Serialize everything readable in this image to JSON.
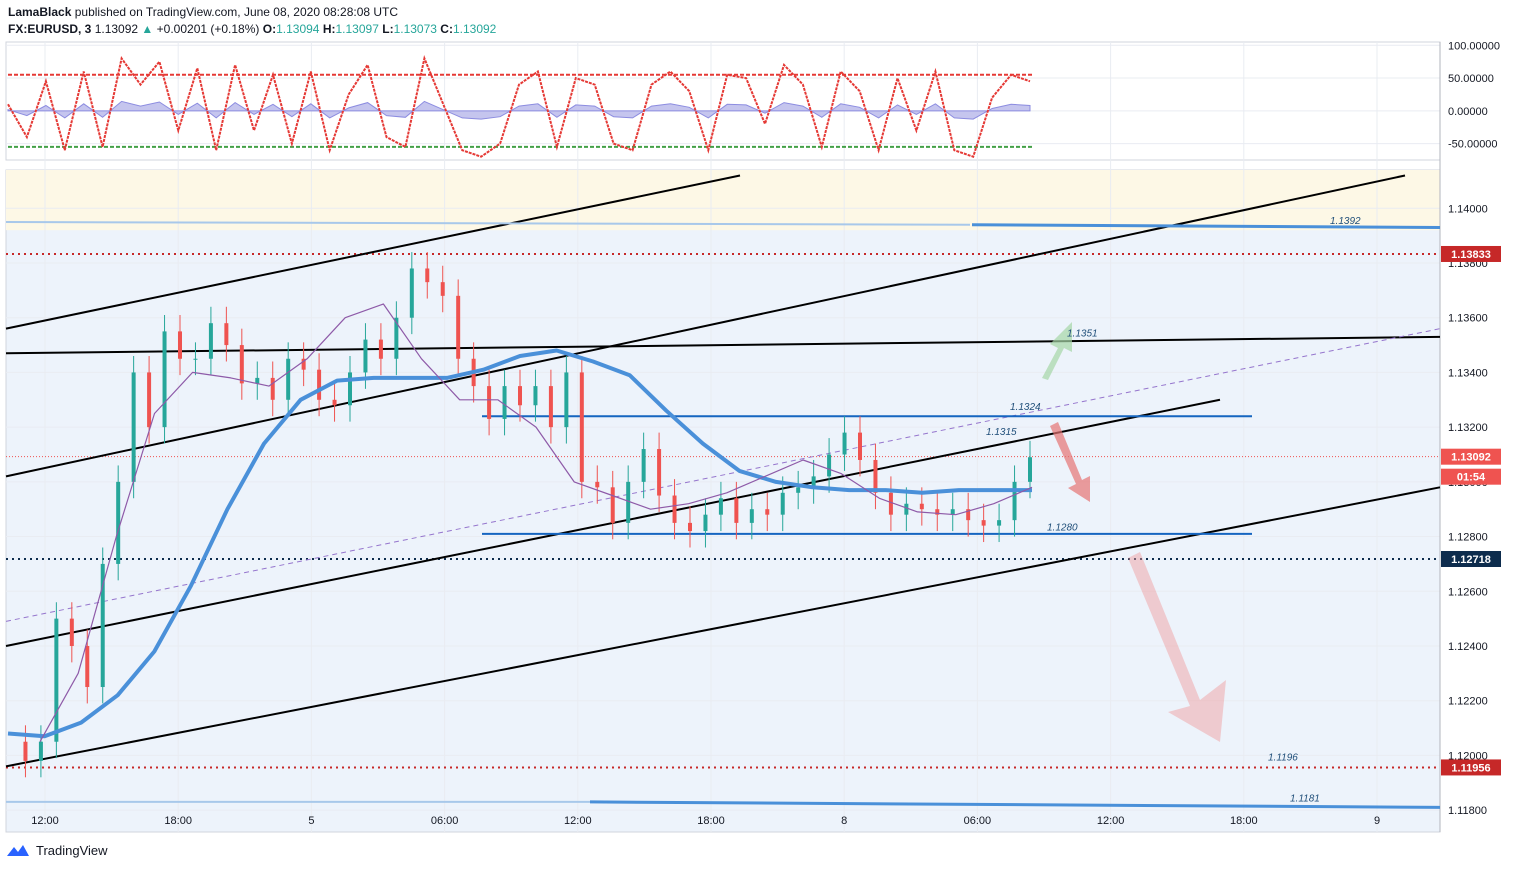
{
  "header": {
    "author": "LamaBlack",
    "published": "published on TradingView.com, June 08, 2020 08:28:08 UTC",
    "symbol": "FX:EURUSD, 3",
    "last": "1.13092",
    "change_arrow": "▲",
    "change": "+0.00201 (+0.18%)",
    "o_label": "O:",
    "o_value": "1.13094",
    "h_label": "H:",
    "h_value": "1.13097",
    "l_label": "L:",
    "l_value": "1.13073",
    "c_label": "C:",
    "c_value": "1.13092"
  },
  "footer": {
    "brand": "TradingView",
    "logo_icon": "tradingview-logo-icon"
  },
  "colors": {
    "grid": "#e9ecf2",
    "panel": "#edf3fb",
    "resistance_band": "#fdf8e6",
    "blue_ma": "#4a90d9",
    "purple_ma": "#8e5aa8",
    "up_candle": "#26a69a",
    "down_candle": "#ef5350",
    "red_level": "#c62828",
    "navy_level": "#0d2c4d",
    "osc_red": "#e53935",
    "osc_green": "#43a047",
    "osc_fill": "#c5c5ee"
  },
  "chart_data": [
    {
      "type": "line",
      "panel": "oscillator",
      "yticks": [
        "100.00000",
        "50.00000",
        "0.00000",
        "-50.00000"
      ],
      "ylim": [
        -75,
        105
      ],
      "levels": [
        55,
        -55
      ],
      "series": [
        {
          "values": [
            10,
            -40,
            45,
            -60,
            60,
            -55,
            80,
            40,
            75,
            -30,
            65,
            -60,
            70,
            -30,
            55,
            -50,
            60,
            -60,
            25,
            70,
            -40,
            -55,
            80,
            10,
            -60,
            -70,
            -50,
            40,
            60,
            -55,
            50,
            40,
            -50,
            -60,
            40,
            60,
            30,
            -60,
            55,
            50,
            -20,
            70,
            40,
            -55,
            60,
            30,
            -60,
            50,
            -30,
            60,
            -60,
            -70,
            20,
            55,
            45
          ]
        }
      ]
    },
    {
      "type": "candlestick",
      "panel": "price",
      "x_labels": [
        "12:00",
        "18:00",
        "5",
        "06:00",
        "12:00",
        "18:00",
        "8",
        "06:00",
        "12:00",
        "18:00",
        "9"
      ],
      "yticks": [
        "1.14000",
        "1.13800",
        "1.13600",
        "1.13400",
        "1.13200",
        "1.13000",
        "1.12800",
        "1.12600",
        "1.12400",
        "1.12200",
        "1.12000",
        "1.11800"
      ],
      "ylim": [
        1.1172,
        1.1414
      ],
      "close_series": [
        1.1205,
        1.1198,
        1.1205,
        1.125,
        1.124,
        1.1225,
        1.127,
        1.13,
        1.134,
        1.132,
        1.1355,
        1.1345,
        1.1345,
        1.1358,
        1.135,
        1.1336,
        1.1338,
        1.133,
        1.1345,
        1.1341,
        1.133,
        1.1328,
        1.134,
        1.1352,
        1.1345,
        1.136,
        1.1378,
        1.1373,
        1.1368,
        1.1345,
        1.1335,
        1.1323,
        1.1335,
        1.1328,
        1.1335,
        1.132,
        1.134,
        1.13,
        1.1298,
        1.1285,
        1.13,
        1.1312,
        1.1295,
        1.1285,
        1.1282,
        1.1288,
        1.1294,
        1.1285,
        1.129,
        1.1288,
        1.1296,
        1.1298,
        1.1302,
        1.131,
        1.1318,
        1.1308,
        1.1296,
        1.1288,
        1.1292,
        1.129,
        1.1288,
        1.129,
        1.1286,
        1.1284,
        1.1286,
        1.13,
        1.1309
      ],
      "blue_ma": [
        1.1208,
        1.1207,
        1.1212,
        1.1222,
        1.1238,
        1.1262,
        1.129,
        1.1314,
        1.133,
        1.1337,
        1.1338,
        1.1338,
        1.1338,
        1.1341,
        1.1346,
        1.1348,
        1.1344,
        1.1339,
        1.1326,
        1.1314,
        1.1304,
        1.13,
        1.1298,
        1.1297,
        1.1297,
        1.1296,
        1.1297,
        1.1297,
        1.1297
      ],
      "purple_ma": [
        1.1205,
        1.123,
        1.128,
        1.1325,
        1.134,
        1.1338,
        1.1335,
        1.1345,
        1.136,
        1.1365,
        1.1345,
        1.133,
        1.133,
        1.132,
        1.13,
        1.1295,
        1.129,
        1.1292,
        1.1296,
        1.1302,
        1.1308,
        1.1303,
        1.1294,
        1.1289,
        1.1288,
        1.1292,
        1.1298
      ],
      "h_levels": [
        {
          "value": 1.13833,
          "label": "1.13833",
          "style": "red-dotted"
        },
        {
          "value": 1.12718,
          "label": "1.12718",
          "style": "navy-dotted"
        },
        {
          "value": 1.11956,
          "label": "1.11956",
          "style": "red-dotted"
        },
        {
          "value": 1.13092,
          "label": "1.13092",
          "style": "last-price",
          "countdown": "01:54"
        }
      ],
      "annotations": [
        "1.1392",
        "1.1351",
        "1.1324",
        "1.1315",
        "1.1280",
        "1.1196",
        "1.1181"
      ]
    }
  ]
}
